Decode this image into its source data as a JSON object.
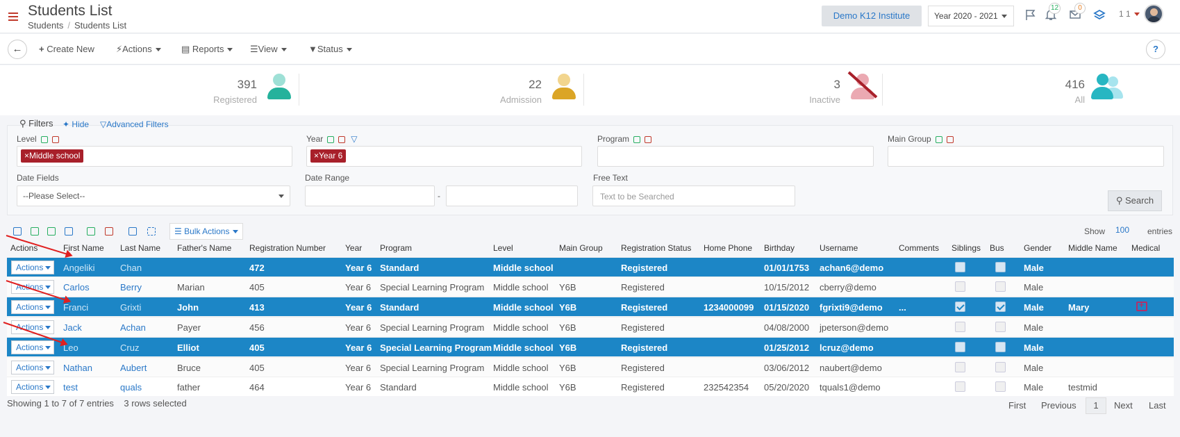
{
  "header": {
    "title": "Students List",
    "breadcrumb": [
      "Students",
      "Students List"
    ],
    "institute": "Demo K12 Institute",
    "year": "Year 2020 - 2021",
    "notifications_count": "12",
    "messages_count": "0",
    "user_label": "1 1"
  },
  "toolbar": {
    "create_new": "Create New",
    "actions": "Actions",
    "reports": "Reports",
    "view": "View",
    "status": "Status",
    "help": "?"
  },
  "stats": [
    {
      "count": "391",
      "label": "Registered",
      "color": "#2bb6a3"
    },
    {
      "count": "22",
      "label": "Admission",
      "color": "#e0a92a"
    },
    {
      "count": "3",
      "label": "Inactive",
      "color": "#e58a96"
    },
    {
      "count": "416",
      "label": "All",
      "color": "#2bb6c3"
    }
  ],
  "filters": {
    "title": "Filters",
    "hide": "Hide",
    "advanced": "Advanced Filters",
    "level_label": "Level",
    "level_tag": "Middle school",
    "year_label": "Year",
    "year_tag": "Year 6",
    "program_label": "Program",
    "main_group_label": "Main Group",
    "date_fields_label": "Date Fields",
    "date_fields_value": "--Please Select--",
    "date_range_label": "Date Range",
    "date_range_sep": "-",
    "free_text_label": "Free Text",
    "free_text_placeholder": "Text to be Searched",
    "search": "Search"
  },
  "table": {
    "bulk_actions": "Bulk Actions",
    "show": "Show",
    "page_size": "100",
    "entries": "entries",
    "columns": [
      "Actions",
      "First Name",
      "Last Name",
      "Father's Name",
      "Registration Number",
      "Year",
      "Program",
      "Level",
      "Main Group",
      "Registration Status",
      "Home Phone",
      "Birthday",
      "Username",
      "Comments",
      "Siblings",
      "Bus",
      "Gender",
      "Middle Name",
      "Medical"
    ],
    "action_label": "Actions",
    "rows": [
      {
        "first": "Angeliki",
        "last": "Chan",
        "father": "",
        "reg": "472",
        "year": "Year 6",
        "program": "Standard",
        "level": "Middle school",
        "group": "",
        "status": "Registered",
        "phone": "",
        "birthday": "01/01/1753",
        "username": "achan6@demo",
        "comments": "",
        "siblings": false,
        "bus": false,
        "gender": "Male",
        "middle": "",
        "medical": false,
        "selected": true
      },
      {
        "first": "Carlos",
        "last": "Berry",
        "father": "Marian",
        "reg": "405",
        "year": "Year 6",
        "program": "Special Learning Program",
        "level": "Middle school",
        "group": "Y6B",
        "status": "Registered",
        "phone": "",
        "birthday": "10/15/2012",
        "username": "cberry@demo",
        "comments": "",
        "siblings": false,
        "bus": false,
        "gender": "Male",
        "middle": "",
        "medical": false,
        "selected": false
      },
      {
        "first": "Franci",
        "last": "Grixti",
        "father": "John",
        "reg": "413",
        "year": "Year 6",
        "program": "Standard",
        "level": "Middle school",
        "group": "Y6B",
        "status": "Registered",
        "phone": "1234000099",
        "birthday": "01/15/2020",
        "username": "fgrixti9@demo",
        "comments": "...",
        "siblings": true,
        "bus": true,
        "gender": "Male",
        "middle": "Mary",
        "medical": true,
        "selected": true
      },
      {
        "first": "Jack",
        "last": "Achan",
        "father": "Payer",
        "reg": "456",
        "year": "Year 6",
        "program": "Special Learning Program",
        "level": "Middle school",
        "group": "Y6B",
        "status": "Registered",
        "phone": "",
        "birthday": "04/08/2000",
        "username": "jpeterson@demo",
        "comments": "",
        "siblings": false,
        "bus": false,
        "gender": "Male",
        "middle": "",
        "medical": false,
        "selected": false
      },
      {
        "first": "Leo",
        "last": "Cruz",
        "father": "Elliot",
        "reg": "405",
        "year": "Year 6",
        "program": "Special Learning Program",
        "level": "Middle school",
        "group": "Y6B",
        "status": "Registered",
        "phone": "",
        "birthday": "01/25/2012",
        "username": "lcruz@demo",
        "comments": "",
        "siblings": false,
        "bus": false,
        "gender": "Male",
        "middle": "",
        "medical": false,
        "selected": true
      },
      {
        "first": "Nathan",
        "last": "Aubert",
        "father": "Bruce",
        "reg": "405",
        "year": "Year 6",
        "program": "Special Learning Program",
        "level": "Middle school",
        "group": "Y6B",
        "status": "Registered",
        "phone": "",
        "birthday": "03/06/2012",
        "username": "naubert@demo",
        "comments": "",
        "siblings": false,
        "bus": false,
        "gender": "Male",
        "middle": "",
        "medical": false,
        "selected": false
      },
      {
        "first": "test",
        "last": "quals",
        "father": "father",
        "reg": "464",
        "year": "Year 6",
        "program": "Standard",
        "level": "Middle school",
        "group": "Y6B",
        "status": "Registered",
        "phone": "232542354",
        "birthday": "05/20/2020",
        "username": "tquals1@demo",
        "comments": "",
        "siblings": false,
        "bus": false,
        "gender": "Male",
        "middle": "testmid",
        "medical": false,
        "selected": false
      }
    ],
    "footer_info": "Showing 1 to 7 of 7 entries",
    "selected_info": "3 rows selected",
    "pager": {
      "first": "First",
      "previous": "Previous",
      "current": "1",
      "next": "Next",
      "last": "Last"
    }
  }
}
